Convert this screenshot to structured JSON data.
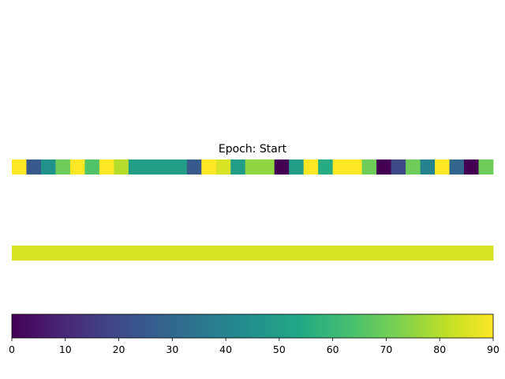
{
  "chart_data": [
    {
      "type": "heatmap",
      "title": "Epoch: Start",
      "colormap": "viridis",
      "vmin": 0,
      "vmax": 90,
      "values": [
        90,
        25,
        45,
        70,
        90,
        65,
        90,
        80,
        50,
        50,
        50,
        50,
        25,
        90,
        85,
        50,
        75,
        75,
        0,
        50,
        90,
        55,
        90,
        90,
        70,
        0,
        20,
        70,
        40,
        90,
        30,
        0,
        70
      ]
    },
    {
      "type": "heatmap",
      "title": "",
      "colormap": "viridis",
      "vmin": 0,
      "vmax": 90,
      "values": [
        85
      ]
    },
    {
      "type": "colorbar",
      "colormap": "viridis",
      "range": [
        0,
        90
      ],
      "ticks": [
        0,
        10,
        20,
        30,
        40,
        50,
        60,
        70,
        80,
        90
      ],
      "tick_labels": [
        "0",
        "10",
        "20",
        "30",
        "40",
        "50",
        "60",
        "70",
        "80",
        "90"
      ]
    }
  ]
}
